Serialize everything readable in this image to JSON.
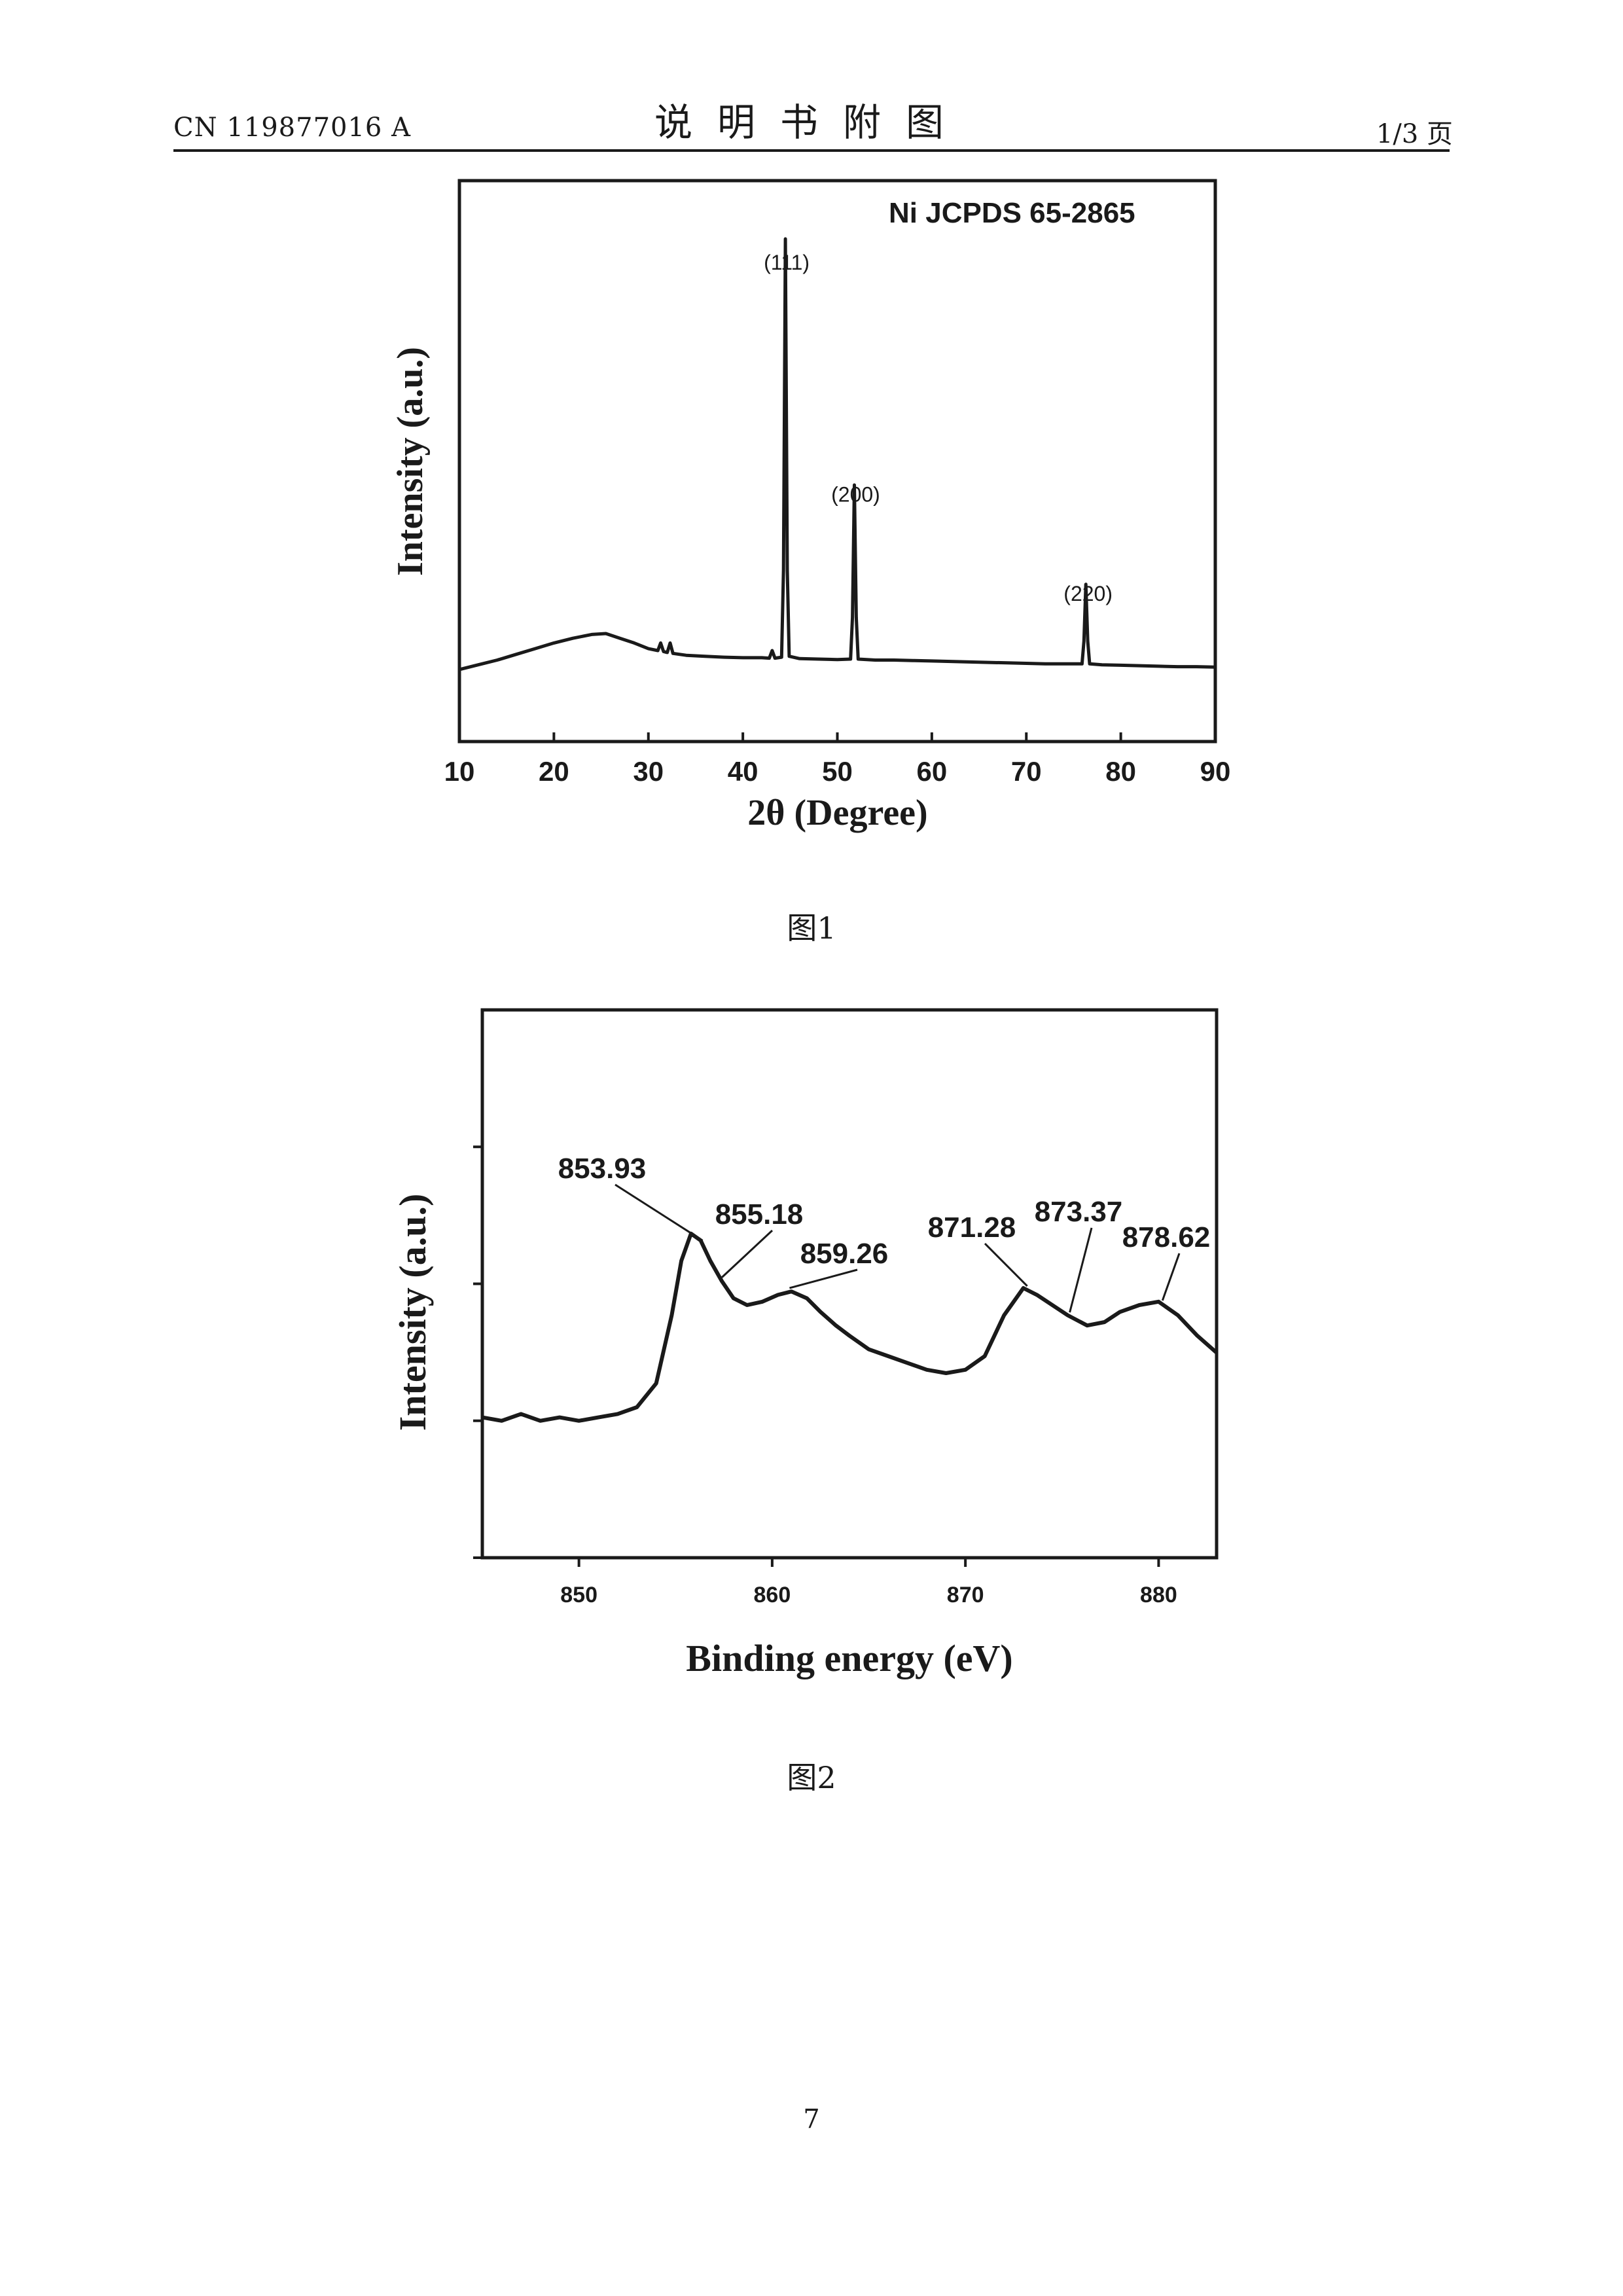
{
  "header": {
    "doc_number": "CN 119877016 A",
    "section_title": "说明书附图",
    "page_indicator": "1/3 页"
  },
  "figures": [
    {
      "caption": "图1"
    },
    {
      "caption": "图2"
    }
  ],
  "page_number": "7",
  "chart_data": [
    {
      "type": "line",
      "title": "",
      "xlabel": "2θ (Degree)",
      "ylabel": "Intensity (a.u.)",
      "xlim": [
        10,
        90
      ],
      "ylim": [
        0,
        100
      ],
      "x_ticks": [
        10,
        20,
        30,
        40,
        50,
        60,
        70,
        80,
        90
      ],
      "y_ticks_shown": false,
      "annotation": "Ni  JCPDS 65-2865",
      "peak_labels": [
        {
          "label": "(111)",
          "x": 44.5,
          "y": 91
        },
        {
          "label": "(200)",
          "x": 51.8,
          "y": 42
        },
        {
          "label": "(220)",
          "x": 76.4,
          "y": 21
        }
      ],
      "series": [
        {
          "values": [
            [
              10,
              9
            ],
            [
              12,
              10
            ],
            [
              14,
              11
            ],
            [
              16,
              12.2
            ],
            [
              18,
              13.4
            ],
            [
              20,
              14.6
            ],
            [
              22,
              15.6
            ],
            [
              24,
              16.4
            ],
            [
              25.5,
              16.6
            ],
            [
              27,
              15.6
            ],
            [
              28.5,
              14.6
            ],
            [
              30,
              13.4
            ],
            [
              31,
              13
            ],
            [
              31.3,
              14.6
            ],
            [
              31.6,
              12.8
            ],
            [
              32,
              12.6
            ],
            [
              32.3,
              14.6
            ],
            [
              32.6,
              12.4
            ],
            [
              34,
              12
            ],
            [
              36,
              11.8
            ],
            [
              38,
              11.6
            ],
            [
              40,
              11.5
            ],
            [
              42,
              11.5
            ],
            [
              42.8,
              11.4
            ],
            [
              43.1,
              13
            ],
            [
              43.4,
              11.4
            ],
            [
              44.1,
              11.6
            ],
            [
              44.3,
              30
            ],
            [
              44.5,
              100
            ],
            [
              44.7,
              30
            ],
            [
              44.9,
              11.8
            ],
            [
              46,
              11.3
            ],
            [
              48,
              11.2
            ],
            [
              50,
              11.1
            ],
            [
              51.4,
              11.2
            ],
            [
              51.6,
              20
            ],
            [
              51.8,
              48
            ],
            [
              52.0,
              20
            ],
            [
              52.2,
              11.2
            ],
            [
              54,
              11
            ],
            [
              56,
              11
            ],
            [
              58,
              10.9
            ],
            [
              60,
              10.8
            ],
            [
              62,
              10.7
            ],
            [
              64,
              10.6
            ],
            [
              66,
              10.5
            ],
            [
              68,
              10.4
            ],
            [
              70,
              10.3
            ],
            [
              72,
              10.2
            ],
            [
              74,
              10.2
            ],
            [
              75.9,
              10.2
            ],
            [
              76.1,
              15
            ],
            [
              76.3,
              27
            ],
            [
              76.5,
              15
            ],
            [
              76.7,
              10.2
            ],
            [
              78,
              10
            ],
            [
              80,
              9.9
            ],
            [
              82,
              9.8
            ],
            [
              84,
              9.7
            ],
            [
              86,
              9.6
            ],
            [
              88,
              9.6
            ],
            [
              90,
              9.5
            ]
          ]
        }
      ]
    },
    {
      "type": "line",
      "title": "",
      "xlabel": "Binding energy (eV)",
      "ylabel": "Intensity (a.u.)",
      "xlim": [
        845,
        883
      ],
      "ylim": [
        0,
        100
      ],
      "x_ticks": [
        850,
        860,
        870,
        880
      ],
      "y_ticks_shown": false,
      "peak_labels": [
        {
          "label": "853.93",
          "x": 856.4
        },
        {
          "label": "855.18",
          "x": 857.4
        },
        {
          "label": "859.26",
          "x": 860.9
        },
        {
          "label": "871.28",
          "x": 873.2
        },
        {
          "label": "873.37",
          "x": 875.4
        },
        {
          "label": "878.62",
          "x": 880.2
        }
      ],
      "series": [
        {
          "values": [
            [
              845,
              22
            ],
            [
              846,
              21
            ],
            [
              847,
              23
            ],
            [
              848,
              21
            ],
            [
              849,
              22
            ],
            [
              850,
              21
            ],
            [
              851,
              22
            ],
            [
              852,
              23
            ],
            [
              853,
              25
            ],
            [
              854,
              32
            ],
            [
              854.8,
              52
            ],
            [
              855.3,
              68
            ],
            [
              855.8,
              76
            ],
            [
              856.3,
              74
            ],
            [
              856.8,
              68
            ],
            [
              857.4,
              62
            ],
            [
              858,
              57
            ],
            [
              858.7,
              55
            ],
            [
              859.5,
              56
            ],
            [
              860.3,
              58
            ],
            [
              861,
              59
            ],
            [
              861.8,
              57
            ],
            [
              862.5,
              53
            ],
            [
              863.3,
              49
            ],
            [
              864,
              46
            ],
            [
              865,
              42
            ],
            [
              866,
              40
            ],
            [
              867,
              38
            ],
            [
              868,
              36
            ],
            [
              869,
              35
            ],
            [
              870,
              36
            ],
            [
              871,
              40
            ],
            [
              872,
              52
            ],
            [
              873,
              60
            ],
            [
              873.7,
              58
            ],
            [
              874.5,
              55
            ],
            [
              875.3,
              52
            ],
            [
              876.3,
              49
            ],
            [
              877.2,
              50
            ],
            [
              878,
              53
            ],
            [
              879,
              55
            ],
            [
              880,
              56
            ],
            [
              881,
              52
            ],
            [
              882,
              46
            ],
            [
              883,
              41
            ]
          ]
        }
      ]
    }
  ]
}
